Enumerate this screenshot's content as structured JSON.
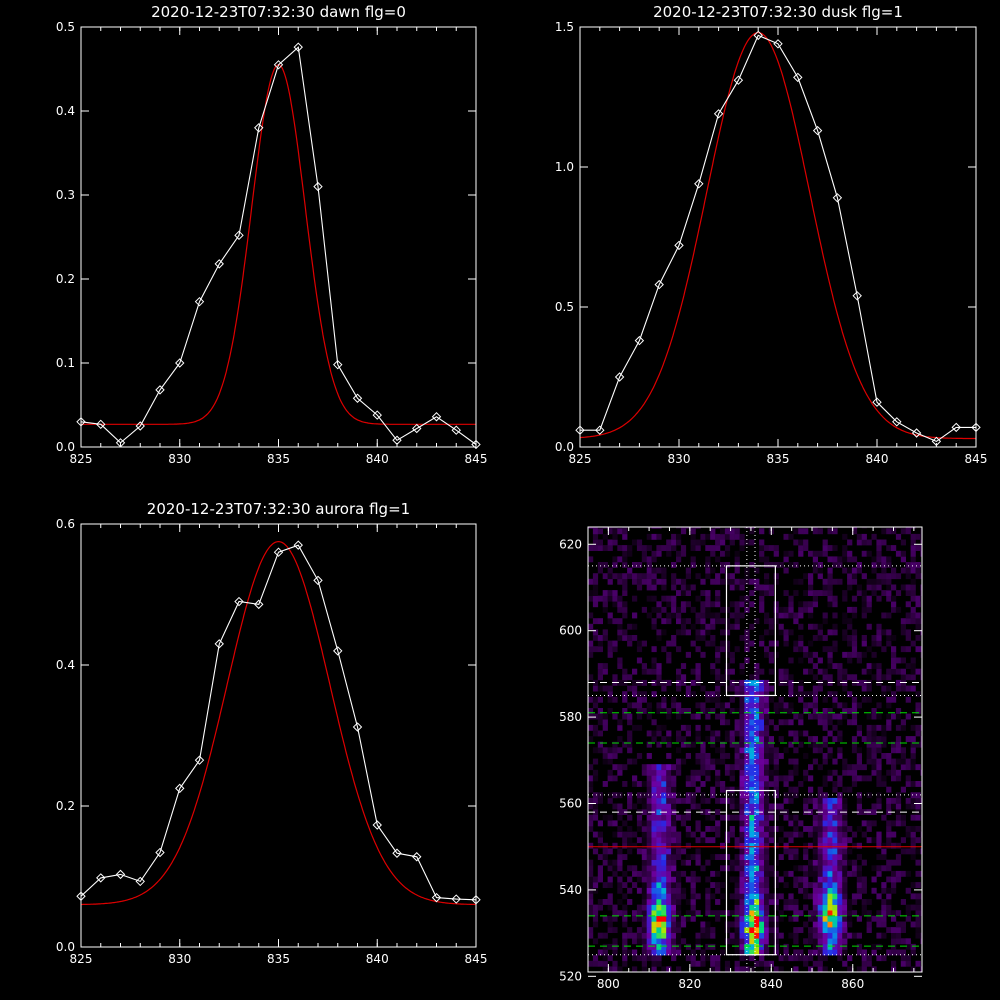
{
  "colors": {
    "observed": "#ffffff",
    "fit": "#dd0000",
    "background": "#000000"
  },
  "chart_data": [
    {
      "type": "line",
      "title": "2020-12-23T07:32:30 dawn flg=0",
      "xlim": [
        825,
        845
      ],
      "ylim": [
        0,
        0.5
      ],
      "xticks": [
        "825",
        "830",
        "835",
        "840",
        "845"
      ],
      "yticks": [
        "0.0",
        "0.1",
        "0.2",
        "0.3",
        "0.4",
        "0.5"
      ],
      "grid": false,
      "series": [
        {
          "role": "observed",
          "marker": "diamond",
          "x": [
            825,
            826,
            827,
            828,
            829,
            830,
            831,
            832,
            833,
            834,
            835,
            836,
            837,
            838,
            839,
            840,
            841,
            842,
            843,
            844,
            845
          ],
          "y": [
            0.03,
            0.027,
            0.005,
            0.025,
            0.068,
            0.1,
            0.173,
            0.218,
            0.252,
            0.38,
            0.455,
            0.476,
            0.31,
            0.098,
            0.058,
            0.038,
            0.008,
            0.022,
            0.036,
            0.02,
            0.003
          ]
        },
        {
          "role": "fit",
          "model": "gaussian",
          "amplitude": 0.428,
          "center": 835.0,
          "sigma": 1.35,
          "offset": 0.027
        }
      ]
    },
    {
      "type": "line",
      "title": "2020-12-23T07:32:30 dusk flg=1",
      "xlim": [
        825,
        845
      ],
      "ylim": [
        0,
        1.5
      ],
      "xticks": [
        "825",
        "830",
        "835",
        "840",
        "845"
      ],
      "yticks": [
        "0.0",
        "0.5",
        "1.0",
        "1.5"
      ],
      "grid": false,
      "series": [
        {
          "role": "observed",
          "marker": "diamond",
          "x": [
            825,
            826,
            827,
            828,
            829,
            830,
            831,
            832,
            833,
            834,
            835,
            836,
            837,
            838,
            839,
            840,
            841,
            842,
            843,
            844,
            845
          ],
          "y": [
            0.06,
            0.06,
            0.25,
            0.38,
            0.58,
            0.72,
            0.94,
            1.19,
            1.31,
            1.47,
            1.44,
            1.32,
            1.13,
            0.89,
            0.54,
            0.16,
            0.09,
            0.05,
            0.02,
            0.07,
            0.07
          ]
        },
        {
          "role": "fit",
          "model": "gaussian",
          "amplitude": 1.45,
          "center": 834.0,
          "sigma": 2.6,
          "offset": 0.03
        }
      ]
    },
    {
      "type": "line",
      "title": "2020-12-23T07:32:30 aurora flg=1",
      "xlim": [
        825,
        845
      ],
      "ylim": [
        0,
        0.6
      ],
      "xticks": [
        "825",
        "830",
        "835",
        "840",
        "845"
      ],
      "yticks": [
        "0.0",
        "0.2",
        "0.4",
        "0.6"
      ],
      "grid": false,
      "series": [
        {
          "role": "observed",
          "marker": "diamond",
          "x": [
            825,
            826,
            827,
            828,
            829,
            830,
            831,
            832,
            833,
            834,
            835,
            836,
            837,
            838,
            839,
            840,
            841,
            842,
            843,
            844,
            845
          ],
          "y": [
            0.072,
            0.098,
            0.103,
            0.093,
            0.134,
            0.225,
            0.265,
            0.43,
            0.49,
            0.486,
            0.56,
            0.57,
            0.52,
            0.42,
            0.312,
            0.173,
            0.133,
            0.128,
            0.07,
            0.068,
            0.067
          ]
        },
        {
          "role": "fit",
          "model": "gaussian",
          "amplitude": 0.515,
          "center": 835.0,
          "sigma": 2.6,
          "offset": 0.06
        }
      ]
    },
    {
      "type": "heatmap",
      "xlim": [
        795,
        877
      ],
      "ylim": [
        521,
        624
      ],
      "xticks": [
        "800",
        "820",
        "840",
        "860"
      ],
      "yticks": [
        "520",
        "540",
        "560",
        "580",
        "600",
        "620"
      ],
      "colormap": "rainbow",
      "emission_columns": [
        {
          "x": 812,
          "y_from": 527,
          "y_to": 566,
          "peak_y": 532
        },
        {
          "x": 835,
          "y_from": 527,
          "y_to": 585,
          "peak_y": 531
        },
        {
          "x": 854,
          "y_from": 527,
          "y_to": 558,
          "peak_y": 534
        }
      ],
      "boxes": [
        {
          "x": [
            829,
            841
          ],
          "y": [
            525,
            563
          ]
        },
        {
          "x": [
            829,
            841
          ],
          "y": [
            585,
            615
          ]
        }
      ],
      "vertical_dotted_x": [
        834,
        836
      ],
      "hlines": [
        {
          "y": 615,
          "style": "dotted",
          "color": "#ffffff"
        },
        {
          "y": 588,
          "style": "dashed",
          "color": "#ffffff"
        },
        {
          "y": 585,
          "style": "dotted",
          "color": "#ffffff"
        },
        {
          "y": 581,
          "style": "dashed",
          "color": "#00dd00"
        },
        {
          "y": 574,
          "style": "dashed",
          "color": "#00dd00"
        },
        {
          "y": 562,
          "style": "dotted",
          "color": "#ffffff"
        },
        {
          "y": 558,
          "style": "dashed",
          "color": "#ffffff"
        },
        {
          "y": 550,
          "style": "solid",
          "color": "#dd0000"
        },
        {
          "y": 534,
          "style": "dashed",
          "color": "#00dd00"
        },
        {
          "y": 527,
          "style": "dashed",
          "color": "#00dd00"
        },
        {
          "y": 525,
          "style": "dotted",
          "color": "#ffffff"
        }
      ]
    }
  ]
}
